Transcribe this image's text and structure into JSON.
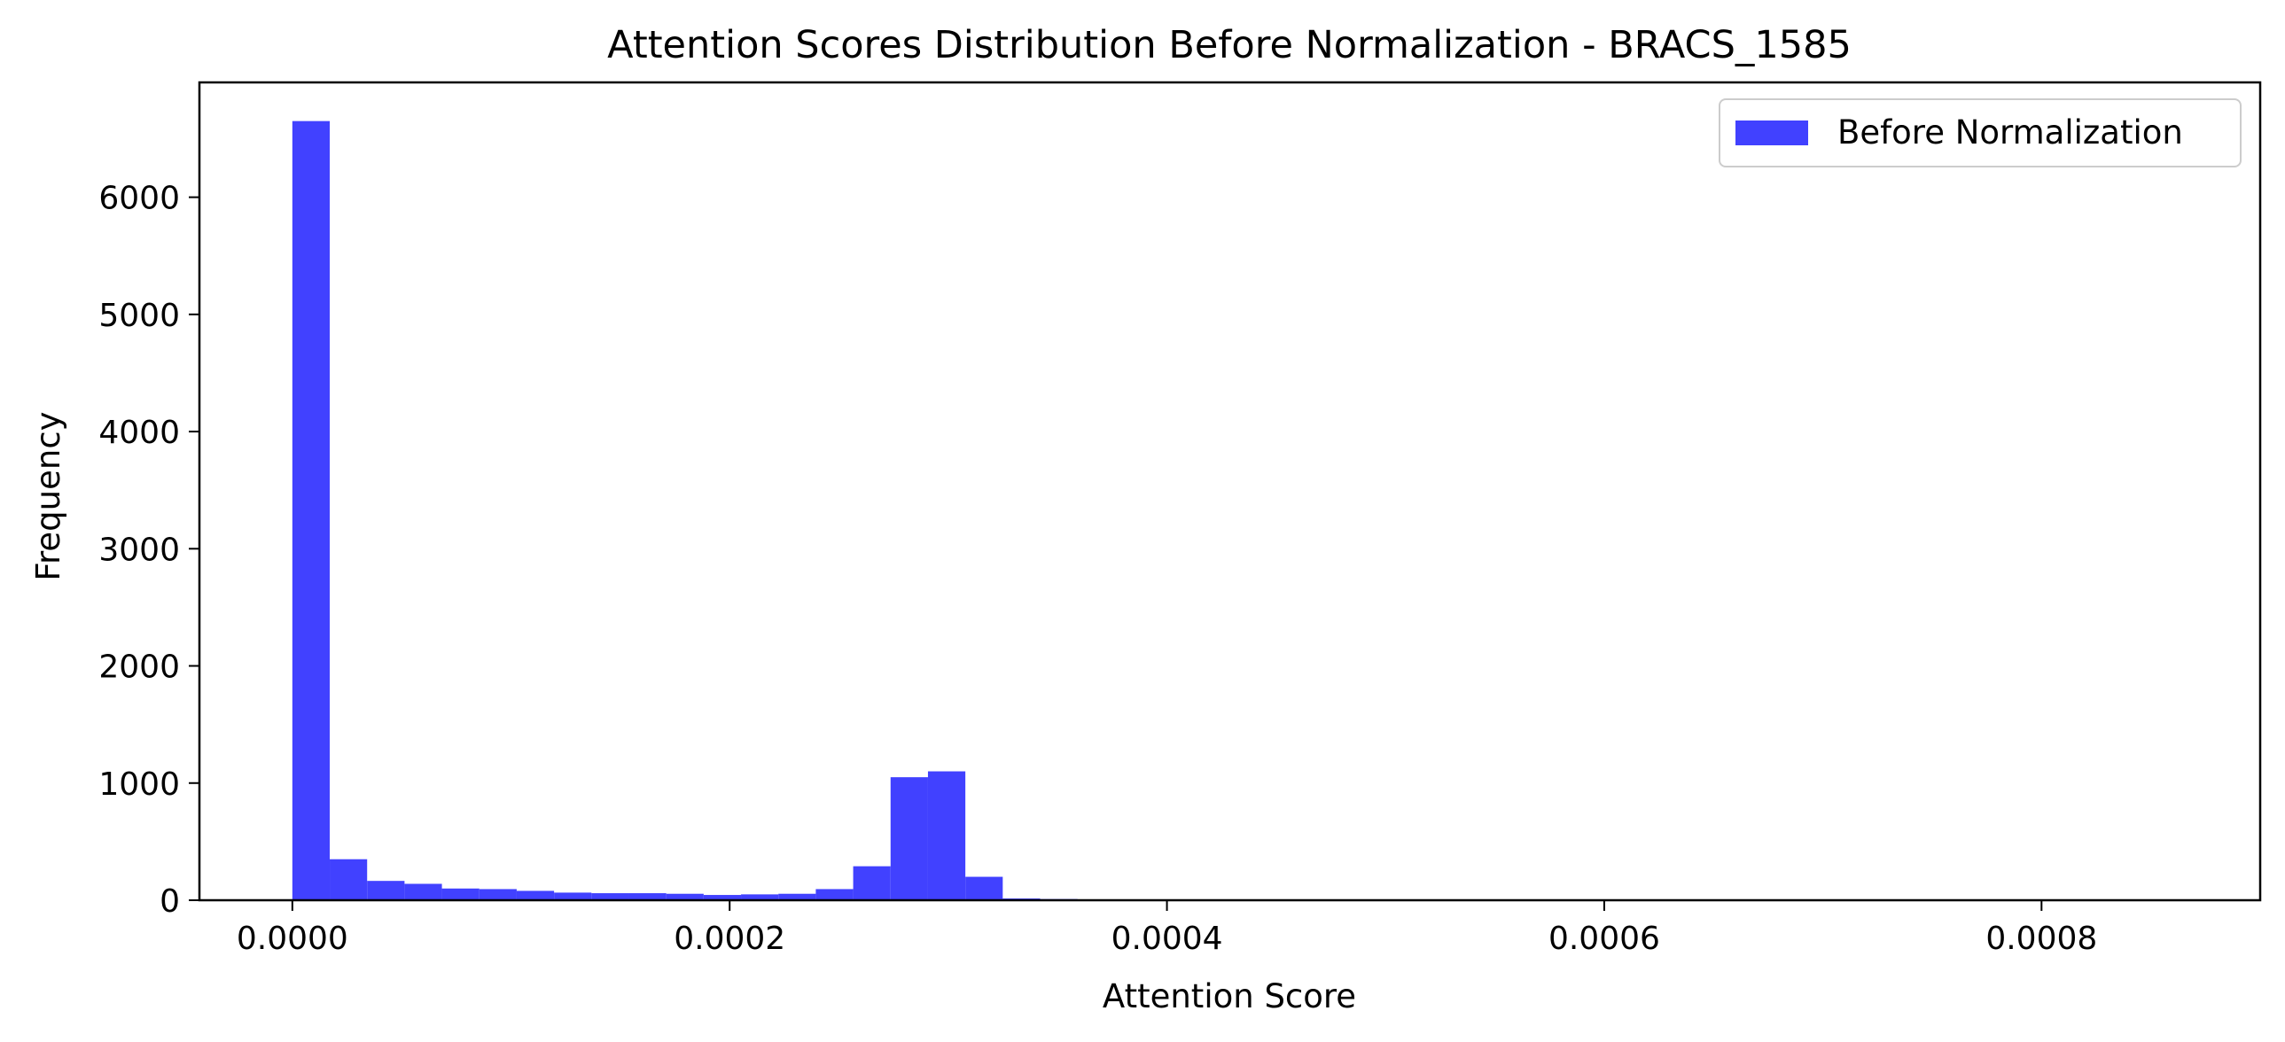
{
  "chart_data": {
    "type": "bar",
    "title": "Attention Scores Distribution Before Normalization - BRACS_1585",
    "xlabel": "Attention Score",
    "ylabel": "Frequency",
    "xlim": [
      -4.25e-05,
      0.0009
    ],
    "ylim": [
      0,
      6980
    ],
    "x_ticks": [
      0.0,
      0.0002,
      0.0004,
      0.0006,
      0.0008
    ],
    "x_tick_labels": [
      "0.0000",
      "0.0002",
      "0.0004",
      "0.0006",
      "0.0008"
    ],
    "y_ticks": [
      0,
      1000,
      2000,
      3000,
      4000,
      5000,
      6000
    ],
    "y_tick_labels": [
      "0",
      "1000",
      "2000",
      "3000",
      "4000",
      "5000",
      "6000"
    ],
    "grid": false,
    "legend_position": "top-right",
    "color": "#4141ff",
    "series": [
      {
        "name": "Before Normalization",
        "bin_edges": [
          0.0,
          1.71e-05,
          3.42e-05,
          5.13e-05,
          6.84e-05,
          8.55e-05,
          0.0001026,
          0.0001197,
          0.0001368,
          0.0001539,
          0.000171,
          0.0001881,
          0.0002052,
          0.0002223,
          0.0002394,
          0.0002565,
          0.0002736,
          0.0002907,
          0.0003078,
          0.0003249,
          0.000342,
          0.0003591
        ],
        "values": [
          6650,
          350,
          165,
          140,
          100,
          95,
          80,
          65,
          60,
          60,
          55,
          45,
          50,
          55,
          95,
          290,
          1050,
          1100,
          200,
          15,
          10
        ]
      }
    ]
  }
}
